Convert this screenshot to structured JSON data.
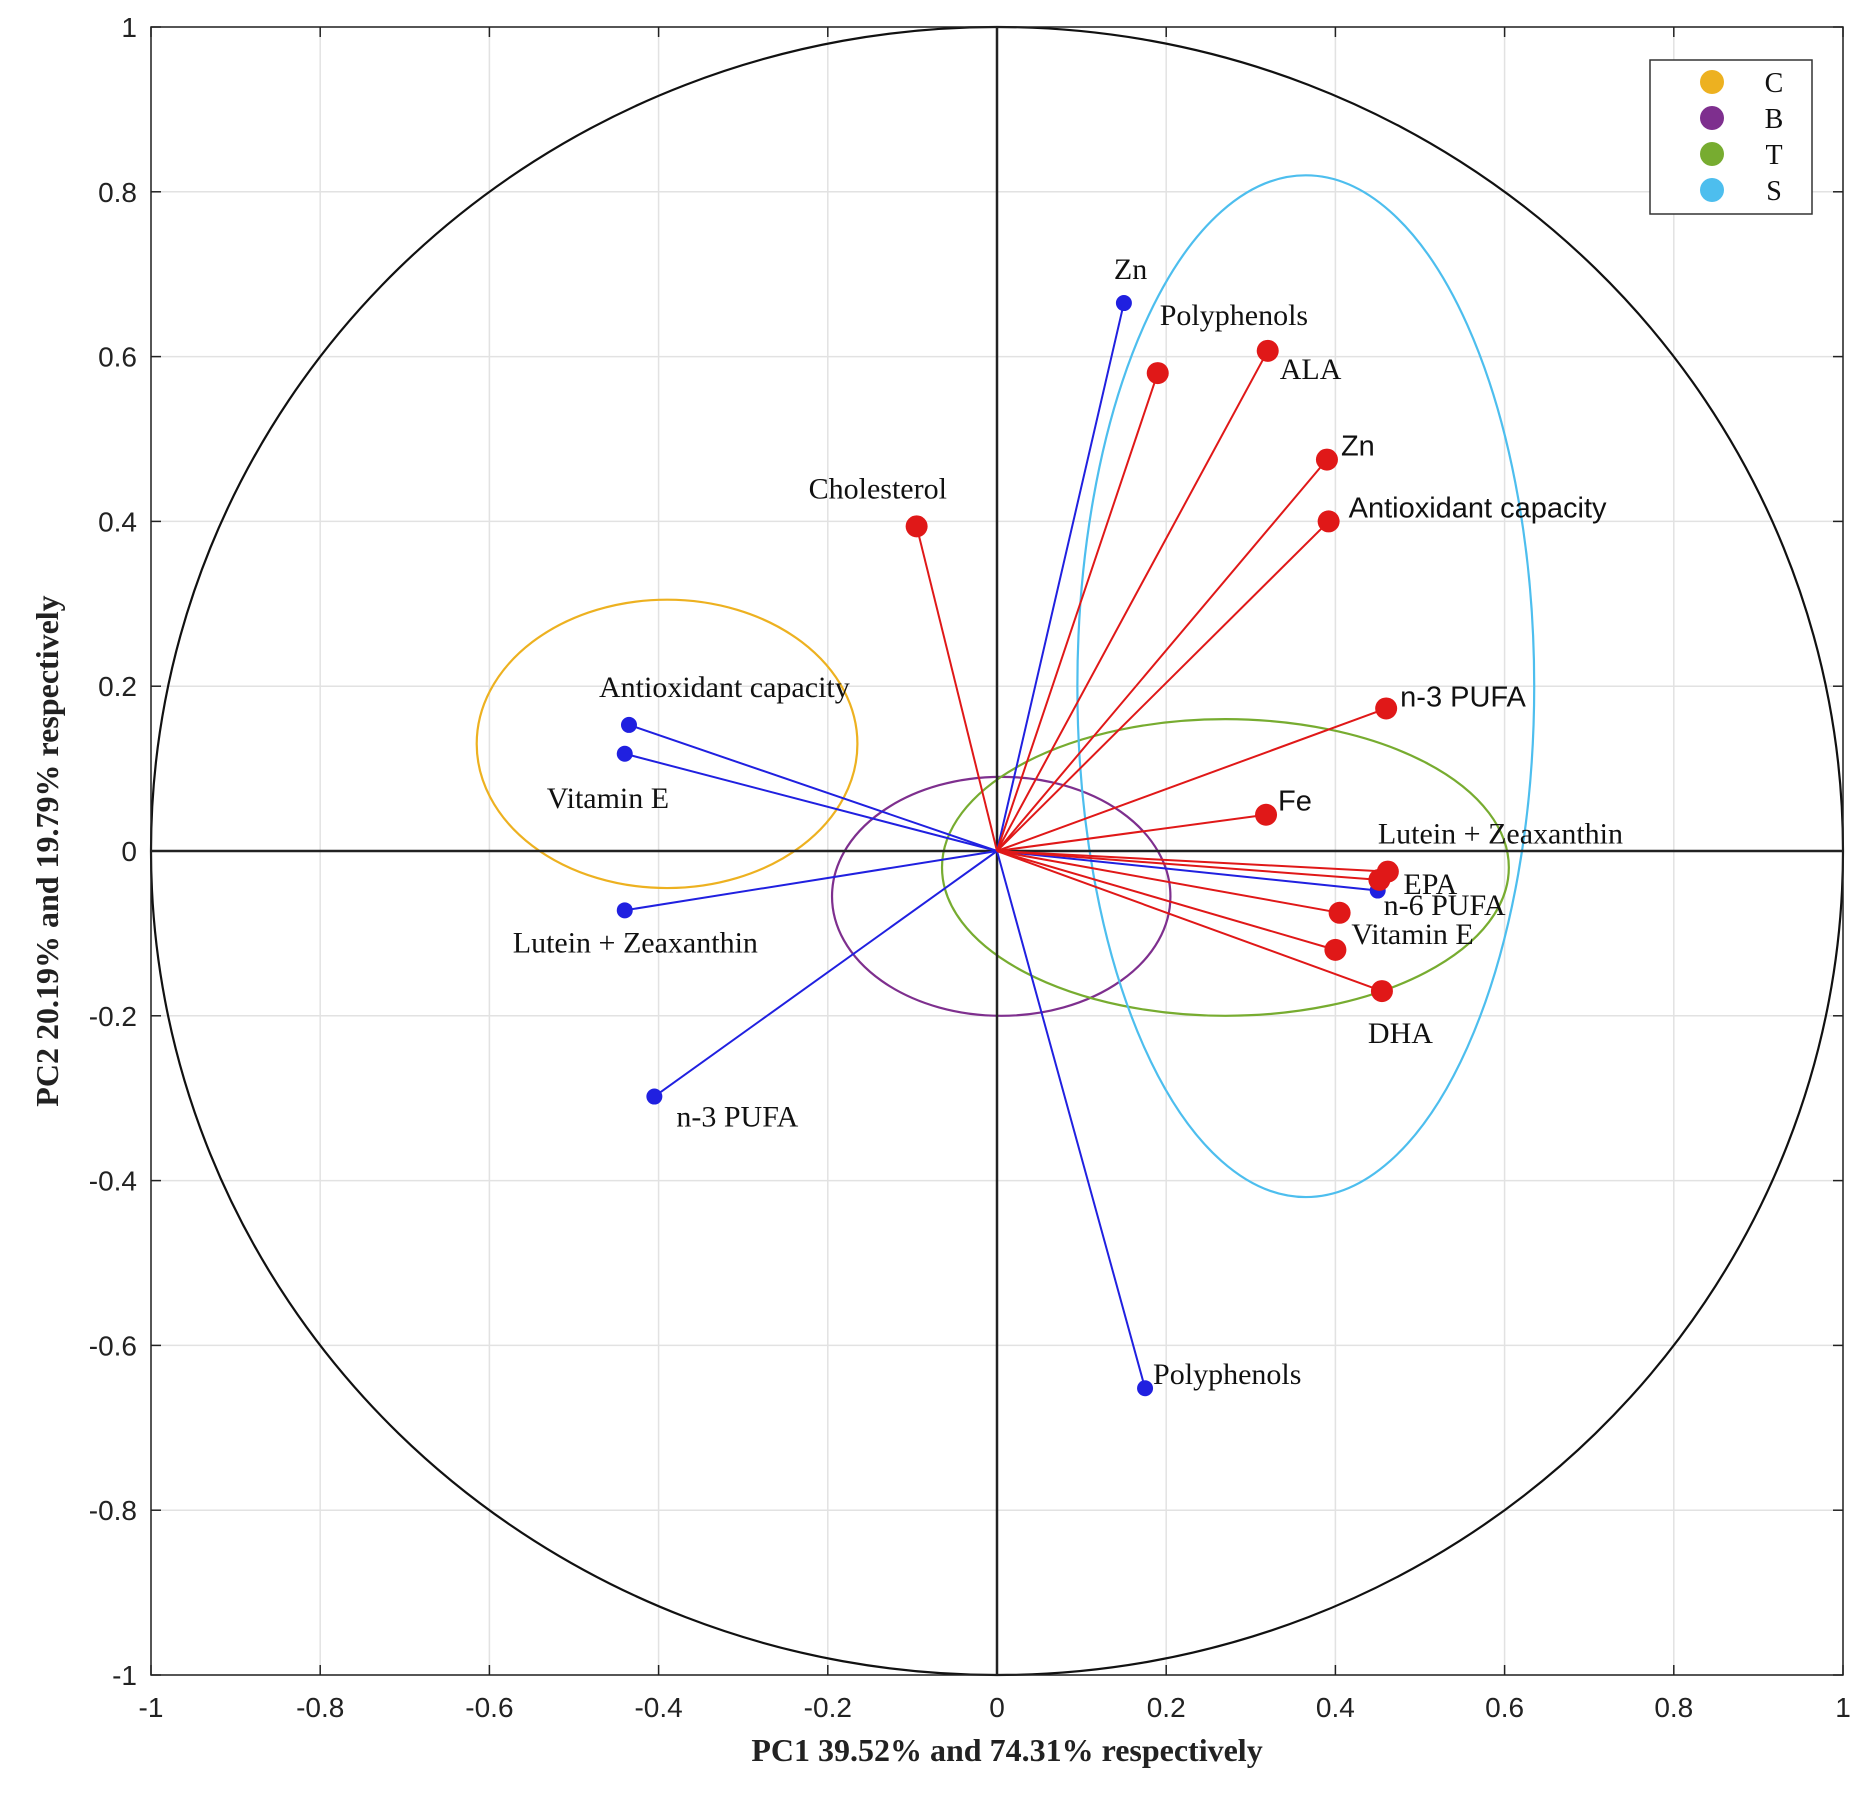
{
  "chart_data": {
    "type": "scatter",
    "subtype": "pca-loading-plot (correlation circle)",
    "xlabel": "PC1 39.52% and 74.31% respectively",
    "ylabel": "PC2 20.19% and 19.79% respectively",
    "xlim": [
      -1,
      1
    ],
    "ylim": [
      -1,
      1
    ],
    "xticks": [
      "-1",
      "-0.8",
      "-0.6",
      "-0.4",
      "-0.2",
      "0",
      "0.2",
      "0.4",
      "0.6",
      "0.8",
      "1"
    ],
    "yticks": [
      "1",
      "0.8",
      "0.6",
      "0.4",
      "0.2",
      "0",
      "-0.2",
      "-0.4",
      "-0.6",
      "-0.8",
      "-1"
    ],
    "grid": true,
    "unit_circle": true,
    "legend_position": "top-right",
    "legend": [
      {
        "label": "C",
        "color": "#EDB120"
      },
      {
        "label": "B",
        "color": "#7E2F8E"
      },
      {
        "label": "T",
        "color": "#77AC30"
      },
      {
        "label": "S",
        "color": "#4DBEEE"
      }
    ],
    "series": [
      {
        "color": "#2020E0",
        "points": [
          {
            "label": "Zn",
            "x": 0.15,
            "y": 0.665
          },
          {
            "label": "Antioxidant capacity",
            "x": -0.435,
            "y": 0.153
          },
          {
            "label": "Vitamin E",
            "x": -0.44,
            "y": 0.118
          },
          {
            "label": "Lutein + Zeaxanthin",
            "x": -0.44,
            "y": -0.072
          },
          {
            "label": "n-3 PUFA",
            "x": -0.405,
            "y": -0.298
          },
          {
            "label": "Polyphenols",
            "x": 0.175,
            "y": -0.652
          },
          {
            "label": "",
            "x": 0.45,
            "y": -0.048
          }
        ]
      },
      {
        "color": "#E01818",
        "points": [
          {
            "label": "Polyphenols",
            "x": 0.19,
            "y": 0.58
          },
          {
            "label": "ALA",
            "x": 0.32,
            "y": 0.607
          },
          {
            "label": "Zn",
            "x": 0.39,
            "y": 0.475
          },
          {
            "label": "Antioxidant capacity",
            "x": 0.392,
            "y": 0.4
          },
          {
            "label": "Cholesterol",
            "x": -0.095,
            "y": 0.394
          },
          {
            "label": "n-3 PUFA",
            "x": 0.46,
            "y": 0.173
          },
          {
            "label": "Fe",
            "x": 0.318,
            "y": 0.044
          },
          {
            "label": "Lutein + Zeaxanthin",
            "x": 0.462,
            "y": -0.025
          },
          {
            "label": "EPA",
            "x": 0.452,
            "y": -0.035
          },
          {
            "label": "n-6 PUFA",
            "x": 0.405,
            "y": -0.075
          },
          {
            "label": "Vitamin E",
            "x": 0.4,
            "y": -0.12
          },
          {
            "label": "DHA",
            "x": 0.455,
            "y": -0.17
          }
        ]
      }
    ],
    "ellipses": [
      {
        "group": "C",
        "color": "#EDB120",
        "cx": -0.39,
        "cy": 0.13,
        "rx": 0.225,
        "ry": 0.175
      },
      {
        "group": "B",
        "color": "#7E2F8E",
        "cx": 0.005,
        "cy": -0.055,
        "rx": 0.2,
        "ry": 0.145
      },
      {
        "group": "T",
        "color": "#77AC30",
        "cx": 0.27,
        "cy": -0.02,
        "rx": 0.335,
        "ry": 0.18
      },
      {
        "group": "S",
        "color": "#4DBEEE",
        "cx": 0.365,
        "cy": 0.2,
        "rx": 0.27,
        "ry": 0.62
      }
    ]
  }
}
